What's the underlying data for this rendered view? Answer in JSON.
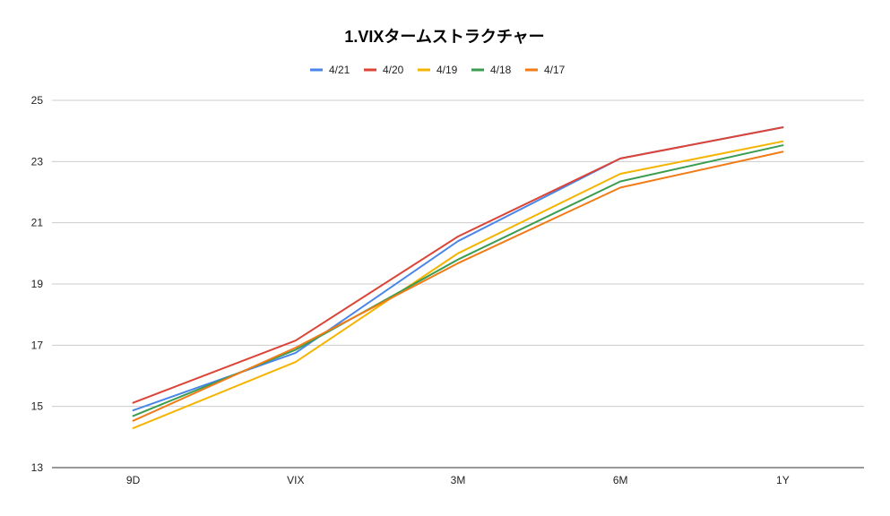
{
  "chart_data": {
    "type": "line",
    "title": "1.VIXタームストラクチャー",
    "xlabel": "",
    "ylabel": "",
    "categories": [
      "9D",
      "VIX",
      "3M",
      "6M",
      "1Y"
    ],
    "ylim": [
      13,
      25
    ],
    "yticks": [
      "13",
      "15",
      "17",
      "19",
      "21",
      "23",
      "25"
    ],
    "grid": true,
    "legend_position": "top",
    "series": [
      {
        "name": "4/21",
        "color": "#4a86e8",
        "values": [
          14.87,
          16.75,
          20.4,
          23.1,
          24.12
        ]
      },
      {
        "name": "4/20",
        "color": "#db4437",
        "values": [
          15.12,
          17.15,
          20.55,
          23.1,
          24.12
        ]
      },
      {
        "name": "4/19",
        "color": "#f4b400",
        "values": [
          14.29,
          16.45,
          20.0,
          22.6,
          23.66
        ]
      },
      {
        "name": "4/18",
        "color": "#3a9d4f",
        "values": [
          14.69,
          16.85,
          19.8,
          22.35,
          23.53
        ]
      },
      {
        "name": "4/17",
        "color": "#f07b17",
        "values": [
          14.53,
          16.92,
          19.68,
          22.15,
          23.32
        ]
      }
    ]
  }
}
